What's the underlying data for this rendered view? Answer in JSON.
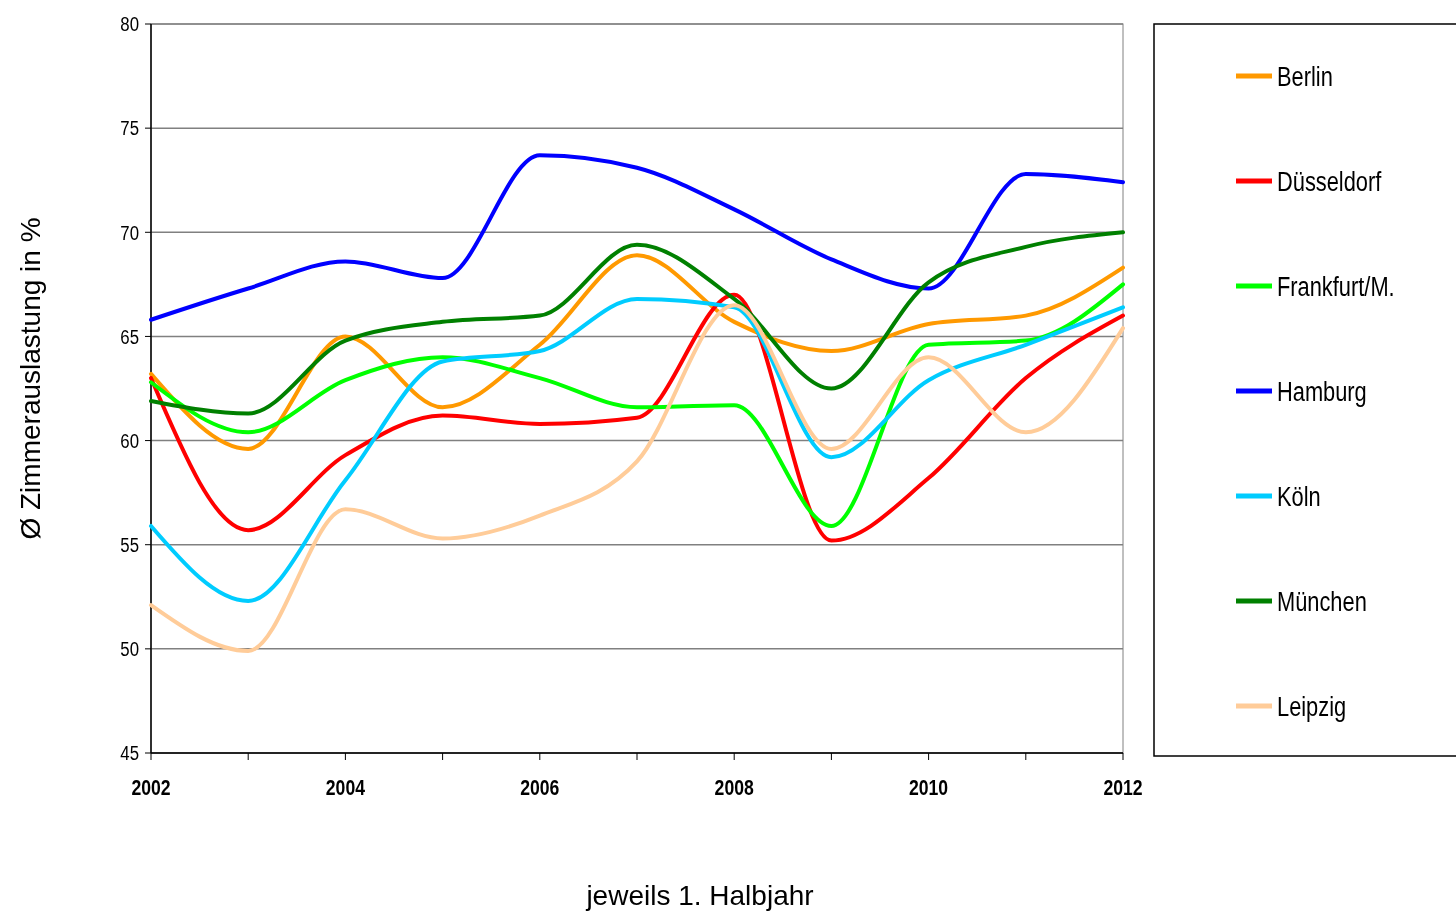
{
  "chart_data": {
    "type": "line",
    "xlabel": "jeweils 1. Halbjahr",
    "ylabel": "Ø Zimmerauslastung in %",
    "x": [
      2002,
      2003,
      2004,
      2005,
      2006,
      2007,
      2008,
      2009,
      2010,
      2011,
      2012
    ],
    "xlim": [
      2002,
      2012
    ],
    "xticks": [
      2002,
      {
        "value": 2003,
        "label": null
      },
      2004,
      {
        "value": 2005,
        "label": null
      },
      2006,
      {
        "value": 2007,
        "label": null
      },
      2008,
      {
        "value": 2009,
        "label": null
      },
      2010,
      {
        "value": 2011,
        "label": null
      },
      2012
    ],
    "ylim": [
      45,
      80
    ],
    "yticks": [
      45,
      50,
      55,
      60,
      65,
      70,
      75,
      80
    ],
    "grid": "y",
    "legend": "right",
    "marker": "none",
    "line_style": "solid",
    "series": [
      {
        "name": "Berlin",
        "color": "#ff9900",
        "values": [
          63.2,
          59.6,
          65.0,
          61.6,
          64.6,
          68.9,
          65.7,
          64.3,
          65.6,
          66.0,
          68.3
        ]
      },
      {
        "name": "Düsseldorf",
        "color": "#ff0000",
        "values": [
          63.0,
          55.7,
          59.3,
          61.2,
          60.8,
          61.1,
          67.0,
          55.2,
          58.2,
          63.0,
          66.0
        ]
      },
      {
        "name": "Frankfurt/M.",
        "color": "#00ff00",
        "values": [
          62.8,
          60.4,
          62.9,
          64.0,
          63.0,
          61.6,
          61.7,
          55.9,
          64.6,
          64.8,
          67.5
        ]
      },
      {
        "name": "Hamburg",
        "color": "#0000ff",
        "values": [
          65.8,
          67.3,
          68.6,
          67.8,
          73.7,
          73.1,
          71.1,
          68.7,
          67.3,
          72.8,
          72.4
        ]
      },
      {
        "name": "Köln",
        "color": "#00ccff",
        "values": [
          55.9,
          52.3,
          58.1,
          63.8,
          64.3,
          66.8,
          66.4,
          59.2,
          62.9,
          64.6,
          66.4
        ]
      },
      {
        "name": "München",
        "color": "#008000",
        "values": [
          61.9,
          61.3,
          64.8,
          65.7,
          66.0,
          69.4,
          66.8,
          62.5,
          67.6,
          69.3,
          70.0
        ]
      },
      {
        "name": "Leipzig",
        "color": "#ffcc99",
        "values": [
          52.1,
          49.9,
          56.7,
          55.3,
          56.4,
          59.0,
          66.5,
          59.6,
          64.0,
          60.4,
          65.4
        ]
      }
    ]
  }
}
